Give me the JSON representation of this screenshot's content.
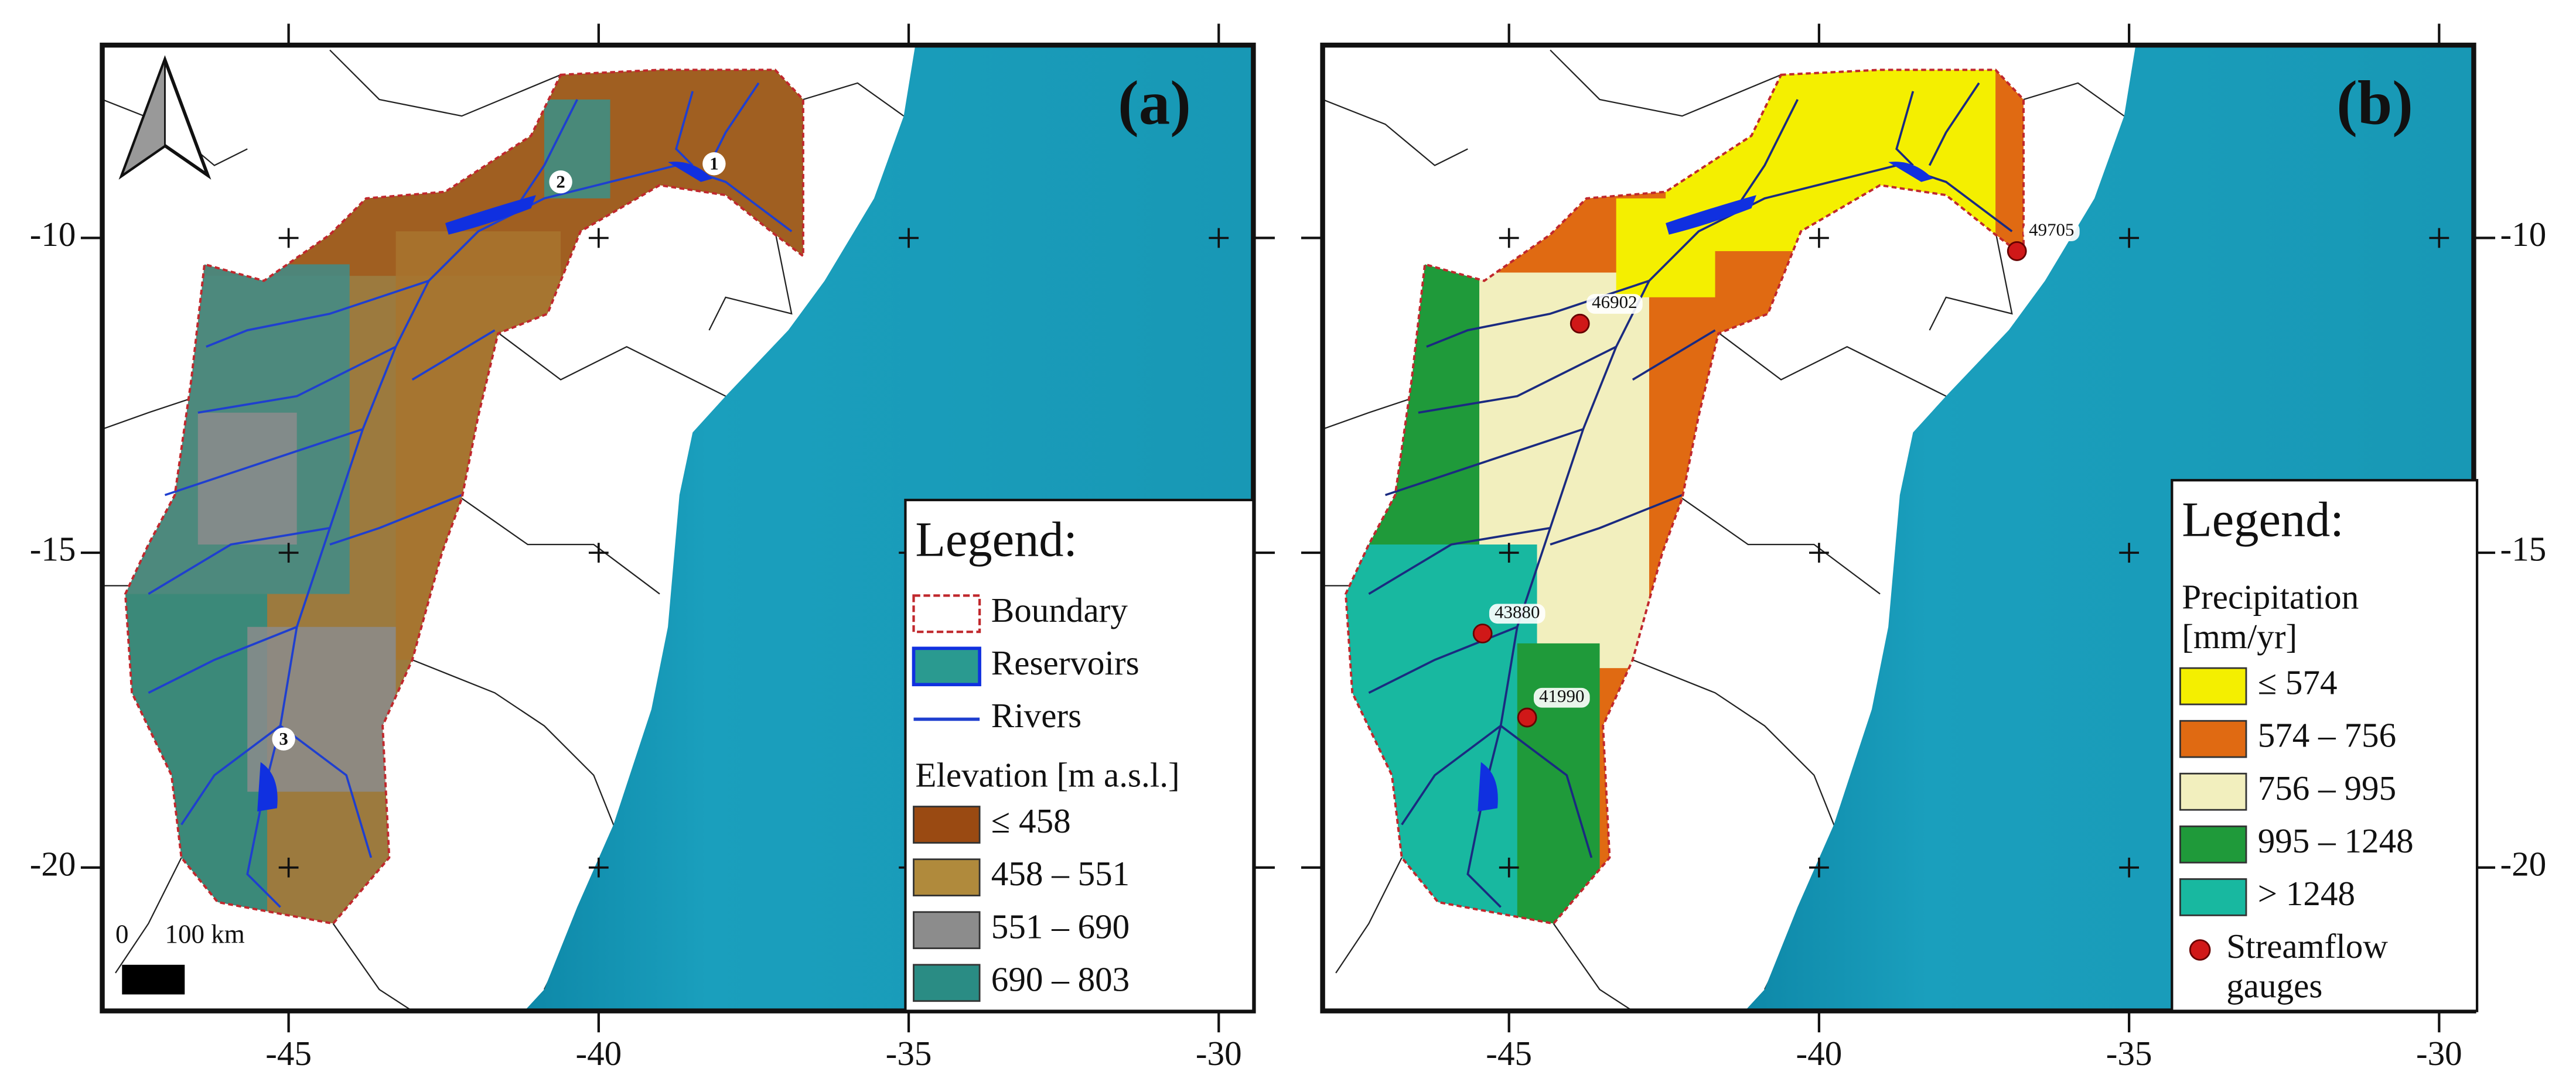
{
  "panels": [
    {
      "label": "(a)",
      "xticks": [
        -45,
        -40,
        -35,
        -30
      ],
      "yticks": [
        -10,
        -15,
        -20
      ],
      "scale_bar": {
        "zero": "0",
        "label": "100 km"
      },
      "reservoir_labels": [
        "1",
        "2",
        "3"
      ],
      "legend": {
        "title": "Legend:",
        "entries": [
          {
            "kind": "boundary",
            "lines": [
              "Boundary"
            ]
          },
          {
            "kind": "reservoir",
            "lines": [
              "Reservoirs"
            ]
          },
          {
            "kind": "river",
            "lines": [
              "Rivers"
            ]
          },
          {
            "kind": "heading",
            "lines": [
              "Elevation [m a.s.l.]"
            ]
          },
          {
            "kind": "class",
            "lines": [
              "≤ 458"
            ],
            "color": "#9a4a12"
          },
          {
            "kind": "class",
            "lines": [
              "458 – 551"
            ],
            "color": "#b08a3c"
          },
          {
            "kind": "class",
            "lines": [
              "551 – 690"
            ],
            "color": "#8c8c8c"
          },
          {
            "kind": "class",
            "lines": [
              "690 – 803"
            ],
            "color": "#2a8c84"
          }
        ]
      }
    },
    {
      "label": "(b)",
      "xticks": [
        -45,
        -40,
        -35,
        -30
      ],
      "yticks": [
        -10,
        -15,
        -20
      ],
      "gauges": [
        "46902",
        "49705",
        "43880",
        "41990"
      ],
      "legend": {
        "title": "Legend:",
        "entries": [
          {
            "kind": "heading",
            "lines": [
              "Precipitation",
              "[mm/yr]"
            ]
          },
          {
            "kind": "class",
            "lines": [
              "≤ 574"
            ],
            "color": "#f4ef00"
          },
          {
            "kind": "class",
            "lines": [
              "574 – 756"
            ],
            "color": "#e06a12"
          },
          {
            "kind": "class",
            "lines": [
              "756 – 995"
            ],
            "color": "#f2efbe"
          },
          {
            "kind": "class",
            "lines": [
              "995 – 1248"
            ],
            "color": "#1f9a3a"
          },
          {
            "kind": "class",
            "lines": [
              "> 1248"
            ],
            "color": "#18b8a0"
          },
          {
            "kind": "gauge",
            "lines": [
              "Streamflow",
              "gauges"
            ]
          }
        ]
      }
    }
  ]
}
